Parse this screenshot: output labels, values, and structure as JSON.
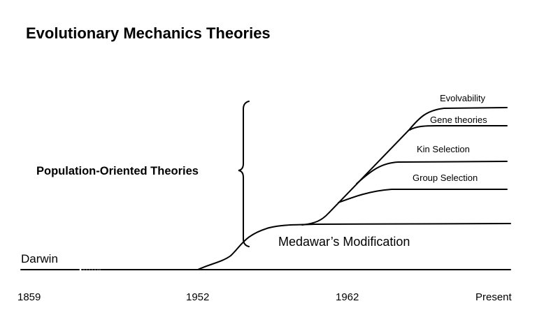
{
  "title": "Evolutionary Mechanics Theories",
  "group_label": "Population-Oriented Theories",
  "origin_label": "Darwin",
  "baseline_label": "Medawar’s Modification",
  "branches": {
    "evolvability": "Evolvability",
    "gene": "Gene theories",
    "kin": "Kin Selection",
    "group": "Group Selection"
  },
  "timeline": [
    "1859",
    "1952",
    "1962",
    "Present"
  ],
  "colors": {
    "line": "#000000",
    "background": "#ffffff"
  }
}
